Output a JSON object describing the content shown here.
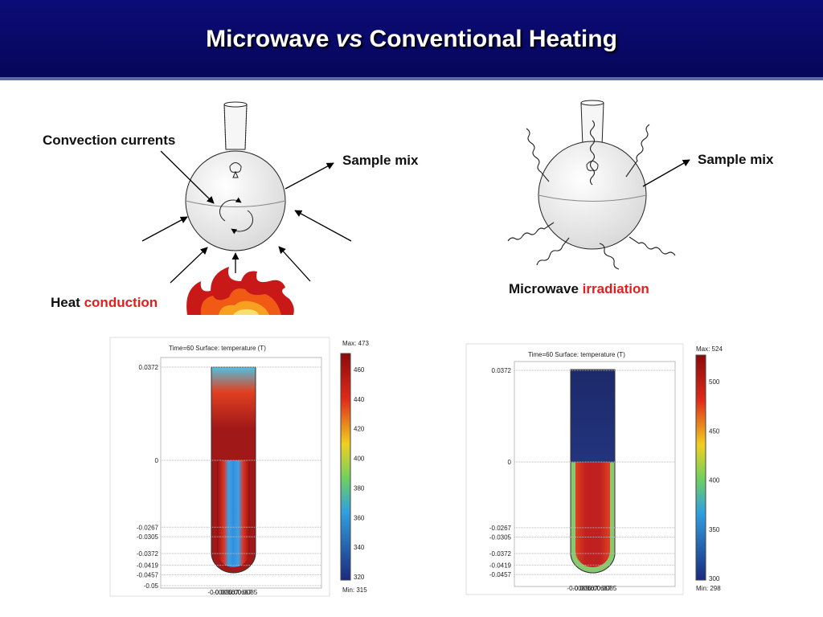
{
  "header": {
    "title": {
      "before": "Microwave",
      "italic": "vs",
      "after": "Conventional Heating"
    }
  },
  "left_diagram": {
    "convection_label": "Convection currents",
    "sample_label": "Sample mix",
    "heat_label": "Heat",
    "heat_label_red": "conduction"
  },
  "right_diagram": {
    "sample_label": "Sample mix",
    "microwave_label": "Microwave",
    "microwave_label_red": "irradiation"
  },
  "plots": [
    {
      "caption": "Time=60  Surface: temperature (T)",
      "max_label": "Max: 473",
      "min_label": "Min: 315",
      "colorbar_ticks": [
        "460",
        "440",
        "420",
        "400",
        "380",
        "360",
        "340",
        "320"
      ],
      "y_ticks": [
        "0.0372",
        "0",
        "-0.0267",
        "-0.0305",
        "-0.0372",
        "-0.0419",
        "-0.0457",
        "-0.05"
      ],
      "x_ticks": [
        "-0.0085",
        "-0.00667",
        "0",
        "0.00667",
        "0.0085"
      ]
    },
    {
      "caption": "Time=60  Surface: temperature (T)",
      "max_label": "Max: 524",
      "min_label": "Min: 298",
      "colorbar_ticks": [
        "500",
        "450",
        "400",
        "350",
        "300"
      ],
      "y_ticks": [
        "0.0372",
        "0",
        "-0.0267",
        "-0.0305",
        "-0.0372",
        "-0.0419",
        "-0.0457"
      ],
      "x_ticks": [
        "-0.0085",
        "-0.00667",
        "0",
        "0.00667",
        "0.0085"
      ]
    }
  ]
}
